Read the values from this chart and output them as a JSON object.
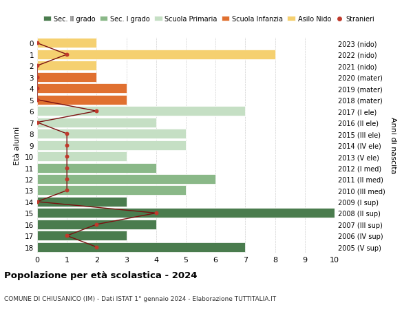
{
  "ages": [
    18,
    17,
    16,
    15,
    14,
    13,
    12,
    11,
    10,
    9,
    8,
    7,
    6,
    5,
    4,
    3,
    2,
    1,
    0
  ],
  "years": [
    "2005 (V sup)",
    "2006 (IV sup)",
    "2007 (III sup)",
    "2008 (II sup)",
    "2009 (I sup)",
    "2010 (III med)",
    "2011 (II med)",
    "2012 (I med)",
    "2013 (V ele)",
    "2014 (IV ele)",
    "2015 (III ele)",
    "2016 (II ele)",
    "2017 (I ele)",
    "2018 (mater)",
    "2019 (mater)",
    "2020 (mater)",
    "2021 (nido)",
    "2022 (nido)",
    "2023 (nido)"
  ],
  "bar_values": [
    7,
    3,
    4,
    10.3,
    3,
    5,
    6,
    4,
    3,
    5,
    5,
    4,
    7,
    3,
    3,
    2,
    2,
    8,
    2
  ],
  "bar_colors": [
    "#4a7c4e",
    "#4a7c4e",
    "#4a7c4e",
    "#4a7c4e",
    "#4a7c4e",
    "#8ab888",
    "#8ab888",
    "#8ab888",
    "#c5dfc4",
    "#c5dfc4",
    "#c5dfc4",
    "#c5dfc4",
    "#c5dfc4",
    "#e07030",
    "#e07030",
    "#e07030",
    "#f5d070",
    "#f5d070",
    "#f5d070"
  ],
  "stranieri_values": [
    2,
    1,
    2,
    4,
    0,
    1,
    1,
    1,
    1,
    1,
    1,
    0,
    2,
    0,
    0,
    0,
    0,
    1,
    0
  ],
  "title": "Popolazione per età scolastica - 2024",
  "subtitle": "COMUNE DI CHIUSANICO (IM) - Dati ISTAT 1° gennaio 2024 - Elaborazione TUTTITALIA.IT",
  "ylabel": "Età alunni",
  "ylabel2": "Anni di nascita",
  "xlim": [
    0,
    10
  ],
  "xticks": [
    0,
    1,
    2,
    3,
    4,
    5,
    6,
    7,
    8,
    9,
    10
  ],
  "legend_labels": [
    "Sec. II grado",
    "Sec. I grado",
    "Scuola Primaria",
    "Scuola Infanzia",
    "Asilo Nido",
    "Stranieri"
  ],
  "legend_colors": [
    "#4a7c4e",
    "#8ab888",
    "#c5dfc4",
    "#e07030",
    "#f5d070",
    "#c0392b"
  ],
  "bg_color": "#ffffff",
  "grid_color": "#d0d0d0",
  "stranieri_line_color": "#7a1010",
  "stranieri_dot_color": "#c0392b"
}
